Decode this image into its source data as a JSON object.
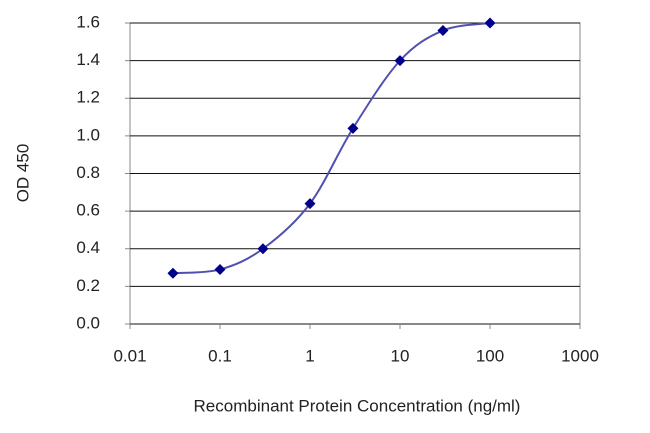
{
  "chart_data": {
    "type": "line",
    "x_label": "Recombinant Protein Concentration (ng/ml)",
    "y_label": "OD 450",
    "x": [
      0.03,
      0.1,
      0.3,
      1,
      3,
      10,
      30,
      100
    ],
    "series": [
      {
        "color": "#00008b",
        "values": [
          0.27,
          0.29,
          0.4,
          0.64,
          1.04,
          1.4,
          1.56,
          1.6
        ]
      }
    ],
    "x_log": true,
    "xlim": [
      0.01,
      1000
    ],
    "xticks": [
      0.01,
      0.1,
      1,
      10,
      100,
      1000
    ],
    "ylim": [
      0,
      1.6
    ],
    "yticks": [
      {
        "value": 0,
        "label": "0.0"
      },
      0.2,
      0.4,
      0.6,
      0.8,
      {
        "value": 1,
        "label": "1.0"
      },
      1.2,
      1.4,
      1.6
    ],
    "grid": true
  }
}
